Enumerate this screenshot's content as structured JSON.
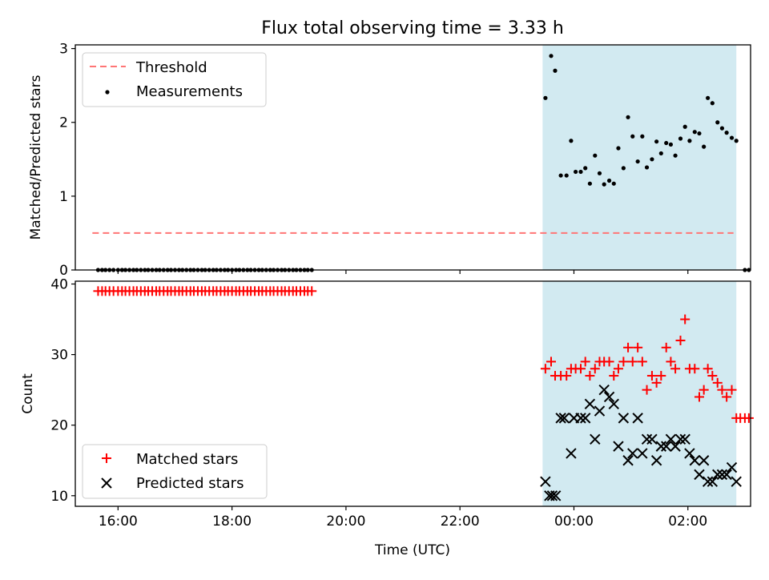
{
  "chart_data": {
    "title": "Flux total observing time = 3.33 h",
    "xlabel": "Time (UTC)",
    "x_ticks": [
      "16:00",
      "18:00",
      "20:00",
      "22:00",
      "00:00",
      "02:00"
    ],
    "x_unit": "hours since 16:00 UTC",
    "xlim": [
      -0.75,
      11.1
    ],
    "shaded_interval": [
      7.45,
      10.85
    ],
    "shade_color": "#add8e6",
    "panels": [
      {
        "type": "scatter",
        "ylabel": "Matched/Predicted stars",
        "ylim": [
          0,
          3.05
        ],
        "yticks": [
          "0",
          "1",
          "2",
          "3"
        ],
        "legend_position": "upper left",
        "threshold": {
          "label": "Threshold",
          "value": 0.5,
          "x_range": [
            -0.45,
            10.8
          ],
          "color": "#ff7575"
        },
        "series": [
          {
            "name": "Measurements",
            "marker": "dot",
            "color": "#000000",
            "points": [
              [
                -0.35,
                0
              ],
              [
                -0.28,
                0
              ],
              [
                -0.22,
                0
              ],
              [
                -0.15,
                0
              ],
              [
                -0.08,
                0
              ],
              [
                0.0,
                0
              ],
              [
                0.07,
                0
              ],
              [
                0.13,
                0
              ],
              [
                0.2,
                0
              ],
              [
                0.27,
                0
              ],
              [
                0.33,
                0
              ],
              [
                0.4,
                0
              ],
              [
                0.47,
                0
              ],
              [
                0.53,
                0
              ],
              [
                0.6,
                0
              ],
              [
                0.67,
                0
              ],
              [
                0.73,
                0
              ],
              [
                0.8,
                0
              ],
              [
                0.87,
                0
              ],
              [
                0.93,
                0
              ],
              [
                1.0,
                0
              ],
              [
                1.07,
                0
              ],
              [
                1.13,
                0
              ],
              [
                1.2,
                0
              ],
              [
                1.27,
                0
              ],
              [
                1.33,
                0
              ],
              [
                1.4,
                0
              ],
              [
                1.47,
                0
              ],
              [
                1.53,
                0
              ],
              [
                1.6,
                0
              ],
              [
                1.67,
                0
              ],
              [
                1.73,
                0
              ],
              [
                1.8,
                0
              ],
              [
                1.87,
                0
              ],
              [
                1.93,
                0
              ],
              [
                2.0,
                0
              ],
              [
                2.07,
                0
              ],
              [
                2.13,
                0
              ],
              [
                2.2,
                0
              ],
              [
                2.27,
                0
              ],
              [
                2.33,
                0
              ],
              [
                2.4,
                0
              ],
              [
                2.47,
                0
              ],
              [
                2.53,
                0
              ],
              [
                2.6,
                0
              ],
              [
                2.67,
                0
              ],
              [
                2.73,
                0
              ],
              [
                2.8,
                0
              ],
              [
                2.87,
                0
              ],
              [
                2.93,
                0
              ],
              [
                3.0,
                0
              ],
              [
                3.07,
                0
              ],
              [
                3.13,
                0
              ],
              [
                3.2,
                0
              ],
              [
                3.27,
                0
              ],
              [
                3.33,
                0
              ],
              [
                3.4,
                0
              ],
              [
                7.5,
                2.33
              ],
              [
                7.6,
                2.9
              ],
              [
                7.67,
                2.7
              ],
              [
                7.77,
                1.28
              ],
              [
                7.87,
                1.28
              ],
              [
                7.95,
                1.75
              ],
              [
                8.03,
                1.33
              ],
              [
                8.12,
                1.33
              ],
              [
                8.2,
                1.38
              ],
              [
                8.28,
                1.17
              ],
              [
                8.37,
                1.55
              ],
              [
                8.45,
                1.31
              ],
              [
                8.53,
                1.16
              ],
              [
                8.62,
                1.21
              ],
              [
                8.7,
                1.17
              ],
              [
                8.78,
                1.65
              ],
              [
                8.87,
                1.38
              ],
              [
                8.95,
                2.07
              ],
              [
                9.03,
                1.81
              ],
              [
                9.12,
                1.47
              ],
              [
                9.2,
                1.81
              ],
              [
                9.28,
                1.39
              ],
              [
                9.37,
                1.5
              ],
              [
                9.45,
                1.74
              ],
              [
                9.53,
                1.58
              ],
              [
                9.62,
                1.72
              ],
              [
                9.7,
                1.7
              ],
              [
                9.78,
                1.55
              ],
              [
                9.87,
                1.78
              ],
              [
                9.95,
                1.94
              ],
              [
                10.03,
                1.75
              ],
              [
                10.12,
                1.87
              ],
              [
                10.2,
                1.85
              ],
              [
                10.28,
                1.67
              ],
              [
                10.35,
                2.33
              ],
              [
                10.43,
                2.26
              ],
              [
                10.52,
                2.0
              ],
              [
                10.6,
                1.92
              ],
              [
                10.68,
                1.86
              ],
              [
                10.77,
                1.79
              ],
              [
                10.85,
                1.75
              ],
              [
                11.0,
                0
              ],
              [
                11.07,
                0
              ]
            ]
          }
        ]
      },
      {
        "type": "scatter",
        "ylabel": "Count",
        "ylim": [
          8.5,
          40.4
        ],
        "yticks": [
          "10",
          "20",
          "30",
          "40"
        ],
        "legend_position": "lower left",
        "series": [
          {
            "name": "Matched stars",
            "marker": "plus",
            "color": "#ff0000",
            "points": [
              [
                -0.35,
                39
              ],
              [
                -0.28,
                39
              ],
              [
                -0.22,
                39
              ],
              [
                -0.15,
                39
              ],
              [
                -0.08,
                39
              ],
              [
                0.0,
                39
              ],
              [
                0.07,
                39
              ],
              [
                0.13,
                39
              ],
              [
                0.2,
                39
              ],
              [
                0.27,
                39
              ],
              [
                0.33,
                39
              ],
              [
                0.4,
                39
              ],
              [
                0.47,
                39
              ],
              [
                0.53,
                39
              ],
              [
                0.6,
                39
              ],
              [
                0.67,
                39
              ],
              [
                0.73,
                39
              ],
              [
                0.8,
                39
              ],
              [
                0.87,
                39
              ],
              [
                0.93,
                39
              ],
              [
                1.0,
                39
              ],
              [
                1.07,
                39
              ],
              [
                1.13,
                39
              ],
              [
                1.2,
                39
              ],
              [
                1.27,
                39
              ],
              [
                1.33,
                39
              ],
              [
                1.4,
                39
              ],
              [
                1.47,
                39
              ],
              [
                1.53,
                39
              ],
              [
                1.6,
                39
              ],
              [
                1.67,
                39
              ],
              [
                1.73,
                39
              ],
              [
                1.8,
                39
              ],
              [
                1.87,
                39
              ],
              [
                1.93,
                39
              ],
              [
                2.0,
                39
              ],
              [
                2.07,
                39
              ],
              [
                2.13,
                39
              ],
              [
                2.2,
                39
              ],
              [
                2.27,
                39
              ],
              [
                2.33,
                39
              ],
              [
                2.4,
                39
              ],
              [
                2.47,
                39
              ],
              [
                2.53,
                39
              ],
              [
                2.6,
                39
              ],
              [
                2.67,
                39
              ],
              [
                2.73,
                39
              ],
              [
                2.8,
                39
              ],
              [
                2.87,
                39
              ],
              [
                2.93,
                39
              ],
              [
                3.0,
                39
              ],
              [
                3.07,
                39
              ],
              [
                3.13,
                39
              ],
              [
                3.2,
                39
              ],
              [
                3.27,
                39
              ],
              [
                3.33,
                39
              ],
              [
                3.4,
                39
              ],
              [
                7.5,
                28
              ],
              [
                7.6,
                29
              ],
              [
                7.67,
                27
              ],
              [
                7.77,
                27
              ],
              [
                7.87,
                27
              ],
              [
                7.95,
                28
              ],
              [
                8.03,
                28
              ],
              [
                8.12,
                28
              ],
              [
                8.2,
                29
              ],
              [
                8.28,
                27
              ],
              [
                8.37,
                28
              ],
              [
                8.45,
                29
              ],
              [
                8.53,
                29
              ],
              [
                8.62,
                29
              ],
              [
                8.7,
                27
              ],
              [
                8.78,
                28
              ],
              [
                8.87,
                29
              ],
              [
                8.95,
                31
              ],
              [
                9.03,
                29
              ],
              [
                9.12,
                31
              ],
              [
                9.2,
                29
              ],
              [
                9.28,
                25
              ],
              [
                9.37,
                27
              ],
              [
                9.45,
                26
              ],
              [
                9.53,
                27
              ],
              [
                9.62,
                31
              ],
              [
                9.7,
                29
              ],
              [
                9.78,
                28
              ],
              [
                9.87,
                32
              ],
              [
                9.95,
                35
              ],
              [
                10.03,
                28
              ],
              [
                10.12,
                28
              ],
              [
                10.2,
                24
              ],
              [
                10.28,
                25
              ],
              [
                10.35,
                28
              ],
              [
                10.43,
                27
              ],
              [
                10.52,
                26
              ],
              [
                10.6,
                25
              ],
              [
                10.68,
                24
              ],
              [
                10.77,
                25
              ],
              [
                10.85,
                21
              ],
              [
                10.92,
                21
              ],
              [
                11.0,
                21
              ],
              [
                11.07,
                21
              ]
            ]
          },
          {
            "name": "Predicted stars",
            "marker": "x",
            "color": "#000000",
            "points": [
              [
                7.5,
                12
              ],
              [
                7.57,
                10
              ],
              [
                7.62,
                10
              ],
              [
                7.68,
                10
              ],
              [
                7.77,
                21
              ],
              [
                7.83,
                21
              ],
              [
                7.95,
                16
              ],
              [
                8.0,
                21
              ],
              [
                8.12,
                21
              ],
              [
                8.2,
                21
              ],
              [
                8.28,
                23
              ],
              [
                8.37,
                18
              ],
              [
                8.45,
                22
              ],
              [
                8.53,
                25
              ],
              [
                8.62,
                24
              ],
              [
                8.7,
                23
              ],
              [
                8.78,
                17
              ],
              [
                8.87,
                21
              ],
              [
                8.95,
                15
              ],
              [
                9.03,
                16
              ],
              [
                9.12,
                21
              ],
              [
                9.2,
                16
              ],
              [
                9.28,
                18
              ],
              [
                9.37,
                18
              ],
              [
                9.45,
                15
              ],
              [
                9.53,
                17
              ],
              [
                9.62,
                17
              ],
              [
                9.7,
                18
              ],
              [
                9.78,
                17
              ],
              [
                9.87,
                18
              ],
              [
                9.95,
                18
              ],
              [
                10.03,
                16
              ],
              [
                10.12,
                15
              ],
              [
                10.2,
                13
              ],
              [
                10.28,
                15
              ],
              [
                10.35,
                12
              ],
              [
                10.43,
                12
              ],
              [
                10.52,
                13
              ],
              [
                10.6,
                13
              ],
              [
                10.68,
                13
              ],
              [
                10.77,
                14
              ],
              [
                10.85,
                12
              ]
            ]
          }
        ]
      }
    ]
  }
}
